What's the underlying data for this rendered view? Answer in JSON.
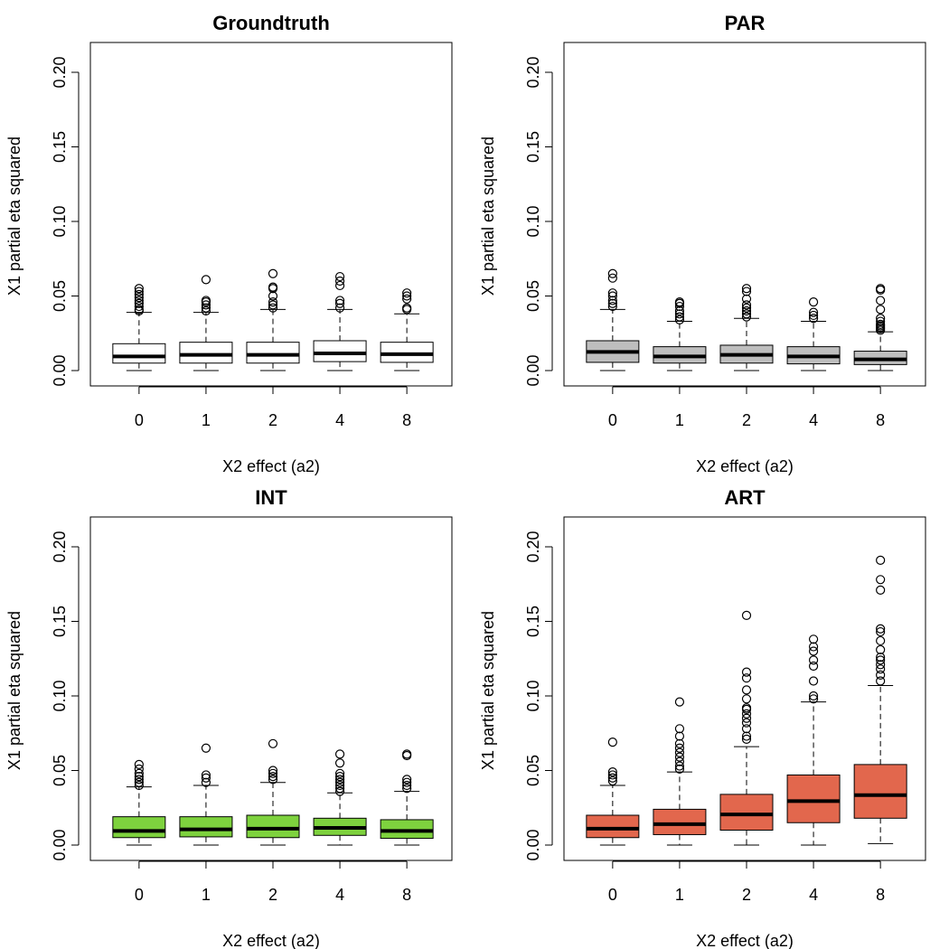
{
  "chart_data": [
    {
      "type": "box",
      "title": "Groundtruth",
      "xlabel": "X2 effect (a2)",
      "ylabel": "X1 partial eta squared",
      "categories": [
        "0",
        "1",
        "2",
        "4",
        "8"
      ],
      "yticks": [
        "0.00",
        "0.05",
        "0.10",
        "0.15",
        "0.20"
      ],
      "ylim": [
        0,
        0.21
      ],
      "fill": "#ffffff",
      "boxes": [
        {
          "min": 0.0,
          "q1": 0.005,
          "median": 0.0095,
          "q3": 0.018,
          "max": 0.039,
          "outliers": [
            0.04,
            0.041,
            0.043,
            0.045,
            0.047,
            0.049,
            0.051,
            0.053,
            0.055
          ]
        },
        {
          "min": 0.0,
          "q1": 0.005,
          "median": 0.0105,
          "q3": 0.019,
          "max": 0.039,
          "outliers": [
            0.04,
            0.042,
            0.044,
            0.046,
            0.047,
            0.061
          ]
        },
        {
          "min": 0.0,
          "q1": 0.005,
          "median": 0.0105,
          "q3": 0.019,
          "max": 0.041,
          "outliers": [
            0.042,
            0.044,
            0.046,
            0.05,
            0.055,
            0.056,
            0.065
          ]
        },
        {
          "min": 0.0,
          "q1": 0.006,
          "median": 0.0115,
          "q3": 0.02,
          "max": 0.041,
          "outliers": [
            0.042,
            0.045,
            0.047,
            0.057,
            0.06,
            0.063
          ]
        },
        {
          "min": 0.0,
          "q1": 0.0055,
          "median": 0.011,
          "q3": 0.019,
          "max": 0.038,
          "outliers": [
            0.041,
            0.042,
            0.048,
            0.05,
            0.052
          ]
        }
      ]
    },
    {
      "type": "box",
      "title": "PAR",
      "xlabel": "X2 effect (a2)",
      "ylabel": "X1 partial eta squared",
      "categories": [
        "0",
        "1",
        "2",
        "4",
        "8"
      ],
      "yticks": [
        "0.00",
        "0.05",
        "0.10",
        "0.15",
        "0.20"
      ],
      "ylim": [
        0,
        0.21
      ],
      "fill": "#bebebe",
      "boxes": [
        {
          "min": 0.0,
          "q1": 0.0055,
          "median": 0.0125,
          "q3": 0.02,
          "max": 0.041,
          "outliers": [
            0.043,
            0.045,
            0.047,
            0.05,
            0.052,
            0.062,
            0.065
          ]
        },
        {
          "min": 0.0,
          "q1": 0.005,
          "median": 0.0095,
          "q3": 0.016,
          "max": 0.033,
          "outliers": [
            0.034,
            0.036,
            0.038,
            0.04,
            0.043,
            0.045,
            0.046
          ]
        },
        {
          "min": 0.0,
          "q1": 0.005,
          "median": 0.0105,
          "q3": 0.017,
          "max": 0.035,
          "outliers": [
            0.036,
            0.038,
            0.04,
            0.042,
            0.044,
            0.048,
            0.053,
            0.055
          ]
        },
        {
          "min": 0.0,
          "q1": 0.0045,
          "median": 0.0095,
          "q3": 0.016,
          "max": 0.033,
          "outliers": [
            0.035,
            0.037,
            0.039,
            0.046
          ]
        },
        {
          "min": 0.0,
          "q1": 0.004,
          "median": 0.0075,
          "q3": 0.013,
          "max": 0.026,
          "outliers": [
            0.027,
            0.028,
            0.029,
            0.03,
            0.031,
            0.033,
            0.035,
            0.041,
            0.047,
            0.054,
            0.055
          ]
        }
      ]
    },
    {
      "type": "box",
      "title": "INT",
      "xlabel": "X2 effect (a2)",
      "ylabel": "X1 partial eta squared",
      "categories": [
        "0",
        "1",
        "2",
        "4",
        "8"
      ],
      "yticks": [
        "0.00",
        "0.05",
        "0.10",
        "0.15",
        "0.20"
      ],
      "ylim": [
        0,
        0.21
      ],
      "fill": "#7ed23e",
      "boxes": [
        {
          "min": 0.0,
          "q1": 0.005,
          "median": 0.0095,
          "q3": 0.019,
          "max": 0.039,
          "outliers": [
            0.04,
            0.042,
            0.044,
            0.046,
            0.048,
            0.051,
            0.054
          ]
        },
        {
          "min": 0.0,
          "q1": 0.0055,
          "median": 0.0105,
          "q3": 0.019,
          "max": 0.04,
          "outliers": [
            0.042,
            0.045,
            0.047,
            0.065
          ]
        },
        {
          "min": 0.0,
          "q1": 0.005,
          "median": 0.011,
          "q3": 0.02,
          "max": 0.042,
          "outliers": [
            0.044,
            0.046,
            0.048,
            0.05,
            0.068
          ]
        },
        {
          "min": 0.0,
          "q1": 0.0065,
          "median": 0.0115,
          "q3": 0.018,
          "max": 0.035,
          "outliers": [
            0.036,
            0.038,
            0.04,
            0.042,
            0.044,
            0.046,
            0.048,
            0.055,
            0.061
          ]
        },
        {
          "min": 0.0,
          "q1": 0.0045,
          "median": 0.0095,
          "q3": 0.017,
          "max": 0.036,
          "outliers": [
            0.038,
            0.04,
            0.042,
            0.044,
            0.06,
            0.061
          ]
        }
      ]
    },
    {
      "type": "box",
      "title": "ART",
      "xlabel": "X2 effect (a2)",
      "ylabel": "X1 partial eta squared",
      "categories": [
        "0",
        "1",
        "2",
        "4",
        "8"
      ],
      "yticks": [
        "0.00",
        "0.05",
        "0.10",
        "0.15",
        "0.20"
      ],
      "ylim": [
        0,
        0.21
      ],
      "fill": "#e2674d",
      "boxes": [
        {
          "min": 0.0,
          "q1": 0.005,
          "median": 0.011,
          "q3": 0.02,
          "max": 0.04,
          "outliers": [
            0.043,
            0.045,
            0.047,
            0.049,
            0.069
          ]
        },
        {
          "min": 0.0,
          "q1": 0.007,
          "median": 0.014,
          "q3": 0.024,
          "max": 0.049,
          "outliers": [
            0.051,
            0.053,
            0.056,
            0.059,
            0.062,
            0.065,
            0.068,
            0.073,
            0.078,
            0.096
          ]
        },
        {
          "min": 0.0,
          "q1": 0.01,
          "median": 0.0205,
          "q3": 0.034,
          "max": 0.066,
          "outliers": [
            0.071,
            0.073,
            0.078,
            0.082,
            0.085,
            0.088,
            0.091,
            0.092,
            0.098,
            0.104,
            0.112,
            0.116,
            0.154
          ]
        },
        {
          "min": 0.0,
          "q1": 0.015,
          "median": 0.0295,
          "q3": 0.047,
          "max": 0.096,
          "outliers": [
            0.098,
            0.1,
            0.11,
            0.12,
            0.124,
            0.13,
            0.133,
            0.138
          ]
        },
        {
          "min": 0.001,
          "q1": 0.018,
          "median": 0.0335,
          "q3": 0.054,
          "max": 0.107,
          "outliers": [
            0.11,
            0.114,
            0.118,
            0.121,
            0.124,
            0.126,
            0.131,
            0.137,
            0.143,
            0.145,
            0.171,
            0.178,
            0.191
          ]
        }
      ]
    }
  ]
}
